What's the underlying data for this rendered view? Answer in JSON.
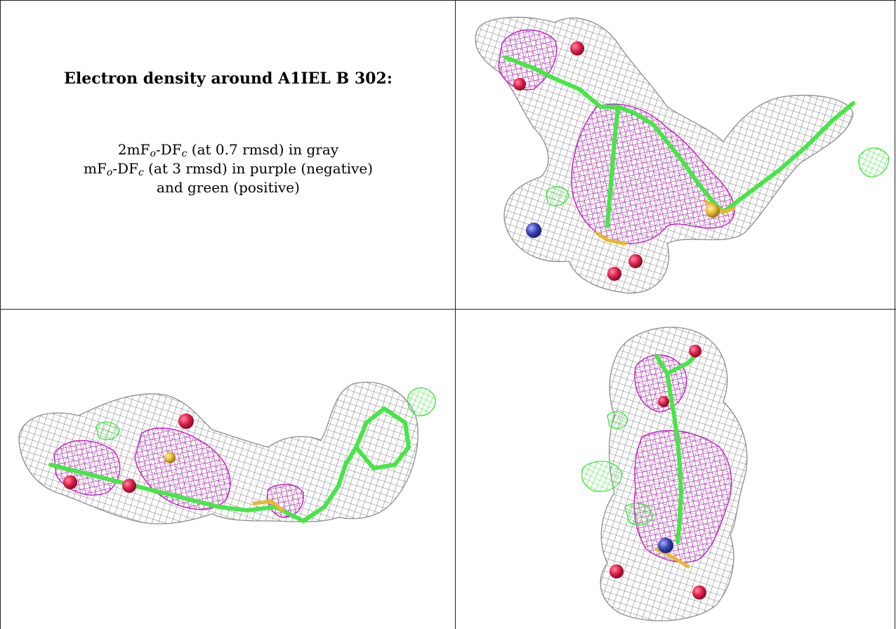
{
  "caption": {
    "title": "Electron density around A1IEL B 302:",
    "line1": {
      "a": "2mF",
      "a_sub": "o",
      "b": "-DF",
      "b_sub": "c",
      "c": " (at 0.7 rmsd) in gray"
    },
    "line2": {
      "a": "mF",
      "a_sub": "o",
      "b": "-DF",
      "b_sub": "c",
      "c": " (at 3 rmsd) in purple (negative)"
    },
    "line3": "and green (positive)"
  },
  "colors": {
    "gray_mesh": "#8c8c8c",
    "purple_mesh": "#c41ec4",
    "green_mesh": "#3de63d",
    "stick_green": "#46e646",
    "oxygen": "#e0204a",
    "nitrogen": "#3a45b8",
    "sulfur": "#e8b830"
  }
}
